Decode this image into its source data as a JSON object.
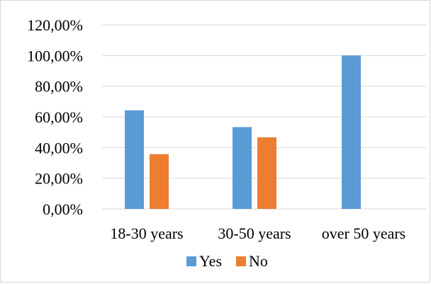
{
  "chart_data": {
    "type": "bar",
    "categories": [
      "18-30 years",
      "30-50 years",
      "over 50 years"
    ],
    "series": [
      {
        "name": "Yes",
        "values": [
          64.29,
          53.33,
          100.0
        ],
        "color": "#5b9bd5"
      },
      {
        "name": "No",
        "values": [
          35.71,
          46.67,
          0.0
        ],
        "color": "#ed7d31"
      }
    ],
    "ylim": [
      0,
      120
    ],
    "yticks": [
      0,
      20,
      40,
      60,
      80,
      100,
      120
    ],
    "ytick_labels": [
      "0,00%",
      "20,00%",
      "40,00%",
      "60,00%",
      "80,00%",
      "100,00%",
      "120,00%"
    ],
    "grid": true,
    "grid_color": "#d9d9d9",
    "legend_position": "bottom",
    "title": "",
    "xlabel": "",
    "ylabel": ""
  }
}
